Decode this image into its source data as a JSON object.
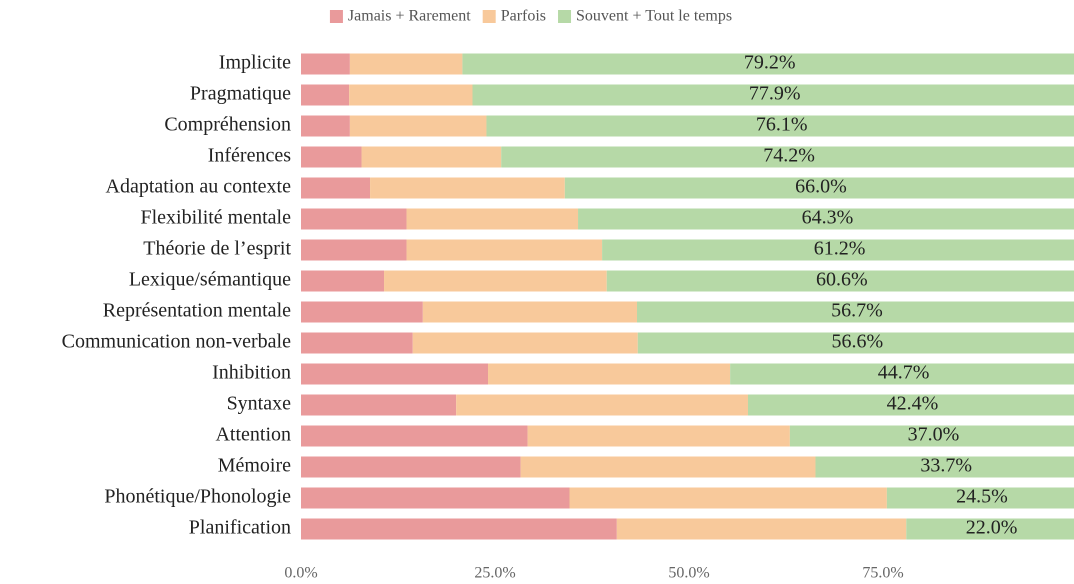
{
  "chart_data": {
    "type": "stacked-bar-horizontal",
    "categories": [
      "Implicite",
      "Pragmatique",
      "Compréhension",
      "Inférences",
      "Adaptation au contexte",
      "Flexibilité mentale",
      "Théorie de l’esprit",
      "Lexique/sémantique",
      "Représentation mentale",
      "Communication non-verbale",
      "Inhibition",
      "Syntaxe",
      "Attention",
      "Mémoire",
      "Phonétique/Phonologie",
      "Planification"
    ],
    "series": [
      {
        "name": "Jamais + Rarement",
        "color": "#e99a9b",
        "values": [
          6.3,
          6.2,
          6.3,
          7.8,
          8.9,
          13.6,
          13.6,
          10.7,
          15.7,
          14.4,
          24.1,
          20.0,
          29.2,
          28.3,
          34.6,
          40.7
        ]
      },
      {
        "name": "Parfois",
        "color": "#f8c99b",
        "values": [
          14.5,
          15.9,
          17.6,
          18.0,
          25.1,
          22.1,
          25.2,
          28.7,
          27.6,
          29.0,
          31.2,
          37.6,
          33.8,
          38.0,
          40.9,
          37.3
        ]
      },
      {
        "name": "Souvent + Tout le temps",
        "color": "#b6d9a7",
        "values": [
          79.2,
          77.9,
          76.1,
          74.2,
          66.0,
          64.3,
          61.2,
          60.6,
          56.7,
          56.6,
          44.7,
          42.4,
          37.0,
          33.7,
          24.5,
          22.0
        ],
        "value_labels": [
          "79.2%",
          "77.9%",
          "76.1%",
          "74.2%",
          "66.0%",
          "64.3%",
          "61.2%",
          "60.6%",
          "56.7%",
          "56.6%",
          "44.7%",
          "42.4%",
          "37.0%",
          "33.7%",
          "24.5%",
          "22.0%"
        ]
      }
    ],
    "xlim": [
      0,
      100
    ],
    "xticks": [
      {
        "value": 0,
        "label": "0.0%"
      },
      {
        "value": 25,
        "label": "25.0%"
      },
      {
        "value": 50,
        "label": "50.0%"
      },
      {
        "value": 75,
        "label": "75.0%"
      }
    ],
    "legend": "top"
  }
}
